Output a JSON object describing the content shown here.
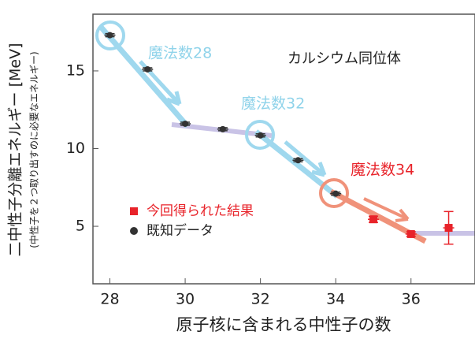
{
  "chart_data": {
    "type": "scatter",
    "xlabel": "原子核に含まれる中性子の数",
    "ylabel": "二中性子分離エネルギー [MeV]",
    "ylabel_note": "(中性子を２つ取り出すのに必要なエネルギー)",
    "annotations": [
      "魔法数28",
      "魔法数32",
      "魔法数34",
      "カルシウム同位体"
    ],
    "xlim": [
      27.55,
      37.7
    ],
    "ylim": [
      1.3,
      18.65
    ],
    "xticks": [
      28,
      30,
      32,
      34,
      36
    ],
    "yticks": [
      5,
      10,
      15
    ],
    "series": [
      {
        "name": "今回得られた結果",
        "color": "#e8232a",
        "marker": "square",
        "x": [
          35,
          36,
          37
        ],
        "values": [
          5.45,
          4.5,
          4.9
        ],
        "errors": [
          0.2,
          0.15,
          1.05
        ]
      },
      {
        "name": "既知データ",
        "color": "#333333",
        "marker": "circle",
        "x": [
          28,
          29,
          30,
          31,
          32,
          33,
          34
        ],
        "values": [
          17.3,
          15.1,
          11.6,
          11.25,
          10.85,
          9.25,
          7.1
        ],
        "errors": [
          0.1,
          0.1,
          0.1,
          0.1,
          0.1,
          0.1,
          0.1
        ]
      }
    ]
  }
}
